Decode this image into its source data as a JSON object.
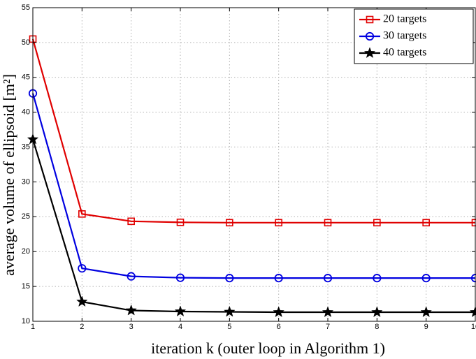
{
  "chart_data": {
    "type": "line",
    "title": "",
    "xlabel": "iteration k (outer loop in Algorithm 1)",
    "ylabel": "average volume of ellipsoid [m²]",
    "xlim": [
      1,
      10
    ],
    "ylim": [
      10,
      55
    ],
    "x": [
      1,
      2,
      3,
      4,
      5,
      6,
      7,
      8,
      9,
      10
    ],
    "x_ticks": [
      "1",
      "2",
      "3",
      "4",
      "5",
      "6",
      "7",
      "8",
      "9",
      "10"
    ],
    "y_ticks": [
      "10",
      "15",
      "20",
      "25",
      "30",
      "35",
      "40",
      "45",
      "50",
      "55"
    ],
    "grid": true,
    "legend_position": "top-right",
    "series": [
      {
        "name": "20 targets",
        "color": "#e00000",
        "marker": "square",
        "values": [
          50.5,
          25.4,
          24.35,
          24.2,
          24.15,
          24.15,
          24.15,
          24.15,
          24.15,
          24.15
        ]
      },
      {
        "name": "30 targets",
        "color": "#0000e0",
        "marker": "circle",
        "values": [
          42.7,
          17.6,
          16.45,
          16.25,
          16.2,
          16.2,
          16.2,
          16.2,
          16.2,
          16.2
        ]
      },
      {
        "name": "40 targets",
        "color": "#000000",
        "marker": "star",
        "values": [
          36.1,
          12.8,
          11.55,
          11.4,
          11.35,
          11.3,
          11.3,
          11.3,
          11.3,
          11.3
        ]
      }
    ]
  }
}
